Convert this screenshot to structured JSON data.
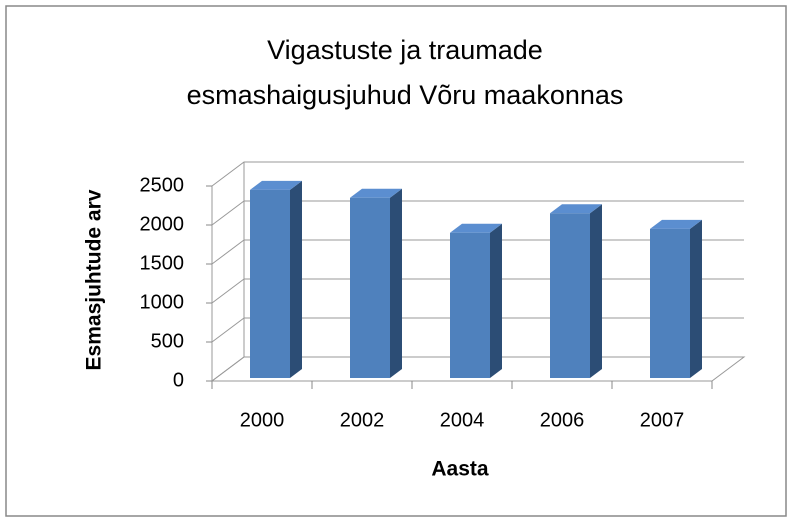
{
  "chart_data": {
    "type": "bar3d",
    "title": [
      "Vigastuste ja traumade",
      "esmashaigusjuhud  Võru maakonnas"
    ],
    "x_label": "Aasta",
    "y_label": "Esmasjuhtude arv",
    "categories": [
      "2000",
      "2002",
      "2004",
      "2006",
      "2007"
    ],
    "values": [
      2450,
      2350,
      1900,
      2150,
      1950
    ],
    "color": "#4f81bd",
    "ylim": [
      0,
      2500
    ],
    "yticks": [
      0,
      500,
      1000,
      1500,
      2000,
      2500
    ],
    "grid": true
  }
}
